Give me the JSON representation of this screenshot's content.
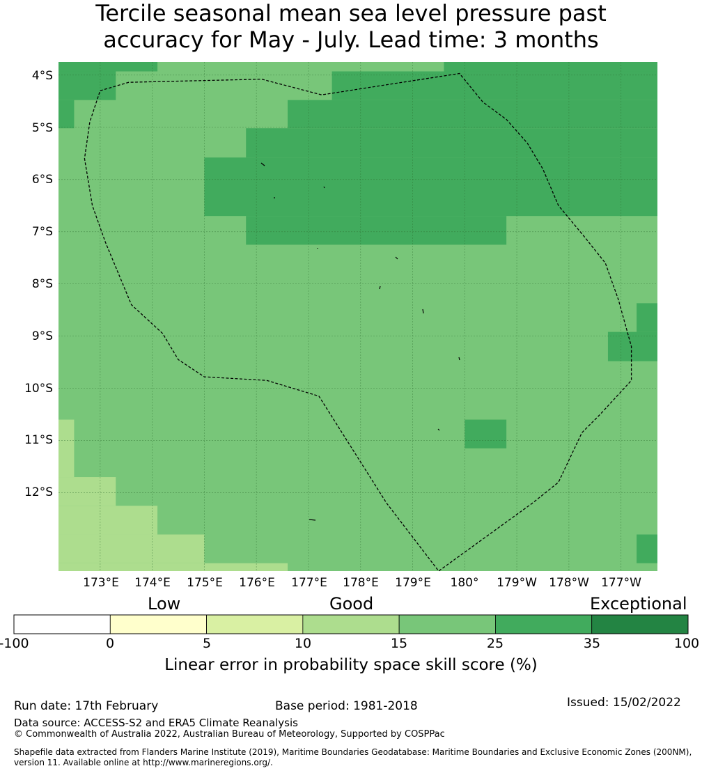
{
  "title": {
    "line1": "Tercile seasonal mean sea level pressure past",
    "line2": "accuracy for May - July. Lead time: 3 months"
  },
  "map": {
    "lat_labels": [
      "4°S",
      "5°S",
      "6°S",
      "7°S",
      "8°S",
      "9°S",
      "10°S",
      "11°S",
      "12°S"
    ],
    "lon_labels": [
      "173°E",
      "174°E",
      "175°E",
      "176°E",
      "177°E",
      "178°E",
      "179°E",
      "180°",
      "179°W",
      "178°W",
      "177°W"
    ],
    "lat_range": [
      -13.5,
      -3.75
    ],
    "lon_range": [
      172.2,
      183.7
    ],
    "gridlines": true,
    "eez_boundary": [
      [
        173.0,
        -4.3
      ],
      [
        173.55,
        -4.14
      ],
      [
        176.1,
        -4.08
      ],
      [
        177.25,
        -4.38
      ],
      [
        179.9,
        -3.97
      ],
      [
        180.35,
        -4.52
      ],
      [
        180.8,
        -4.85
      ],
      [
        181.2,
        -5.3
      ],
      [
        181.5,
        -5.8
      ],
      [
        181.8,
        -6.5
      ],
      [
        182.3,
        -7.1
      ],
      [
        182.7,
        -7.6
      ],
      [
        182.95,
        -8.3
      ],
      [
        183.2,
        -9.2
      ],
      [
        183.2,
        -9.85
      ],
      [
        182.6,
        -10.5
      ],
      [
        182.25,
        -10.85
      ],
      [
        181.8,
        -11.8
      ],
      [
        181.3,
        -12.2
      ],
      [
        179.5,
        -13.5
      ],
      [
        178.5,
        -12.2
      ],
      [
        177.2,
        -10.15
      ],
      [
        176.2,
        -9.85
      ],
      [
        175.0,
        -9.78
      ],
      [
        174.5,
        -9.45
      ],
      [
        174.2,
        -8.95
      ],
      [
        173.6,
        -8.4
      ],
      [
        173.1,
        -7.2
      ],
      [
        172.85,
        -6.5
      ],
      [
        172.7,
        -5.6
      ],
      [
        172.8,
        -4.9
      ],
      [
        173.0,
        -4.3
      ]
    ],
    "skill_cells": [
      {
        "lon": [
          172.2,
          174.1
        ],
        "lat": [
          -3.75,
          -3.93
        ],
        "category": 5
      },
      {
        "lon": [
          172.2,
          173.3
        ],
        "lat": [
          -3.93,
          -4.48
        ],
        "category": 5
      },
      {
        "lon": [
          172.2,
          172.5
        ],
        "lat": [
          -4.48,
          -5.02
        ],
        "category": 5
      },
      {
        "lon": [
          179.6,
          183.7
        ],
        "lat": [
          -3.75,
          -3.93
        ],
        "category": 5
      },
      {
        "lon": [
          177.45,
          183.7
        ],
        "lat": [
          -3.93,
          -4.48
        ],
        "category": 5
      },
      {
        "lon": [
          176.6,
          183.7
        ],
        "lat": [
          -4.48,
          -5.02
        ],
        "category": 5
      },
      {
        "lon": [
          175.8,
          183.7
        ],
        "lat": [
          -5.02,
          -5.58
        ],
        "category": 5
      },
      {
        "lon": [
          175.0,
          183.7
        ],
        "lat": [
          -5.58,
          -6.7
        ],
        "category": 5
      },
      {
        "lon": [
          175.8,
          180.8
        ],
        "lat": [
          -6.7,
          -7.25
        ],
        "category": 5
      },
      {
        "lon": [
          183.3,
          183.7
        ],
        "lat": [
          -8.37,
          -8.92
        ],
        "category": 5
      },
      {
        "lon": [
          182.75,
          183.7
        ],
        "lat": [
          -8.92,
          -9.48
        ],
        "category": 5
      },
      {
        "lon": [
          180.0,
          180.8
        ],
        "lat": [
          -10.6,
          -11.15
        ],
        "category": 5
      },
      {
        "lon": [
          183.3,
          183.7
        ],
        "lat": [
          -12.8,
          -13.35
        ],
        "category": 5
      },
      {
        "lon": [
          172.2,
          172.5
        ],
        "lat": [
          -10.6,
          -11.7
        ],
        "category": 3
      },
      {
        "lon": [
          172.2,
          173.3
        ],
        "lat": [
          -11.7,
          -12.25
        ],
        "category": 3
      },
      {
        "lon": [
          172.2,
          174.1
        ],
        "lat": [
          -12.25,
          -12.8
        ],
        "category": 3
      },
      {
        "lon": [
          172.2,
          175.0
        ],
        "lat": [
          -12.8,
          -13.35
        ],
        "category": 3
      },
      {
        "lon": [
          172.2,
          176.6
        ],
        "lat": [
          -13.35,
          -13.5
        ],
        "category": 3
      }
    ]
  },
  "colorbar": {
    "category_labels": [
      "Low",
      "Good",
      "Exceptional"
    ],
    "ticks": [
      "-100",
      "0",
      "5",
      "10",
      "15",
      "25",
      "35",
      "100"
    ],
    "colors": [
      "#ffffff",
      "#ffffcc",
      "#d9f0a3",
      "#addd8e",
      "#78c679",
      "#41ab5d",
      "#238443"
    ],
    "title": "Linear error in probability space skill score (%)"
  },
  "footer": {
    "run_date": "Run date: 17th February",
    "base_period": "Base period: 1981-2018",
    "issued": "Issued: 15/02/2022",
    "data_source": "Data source: ACCESS-S2 and ERA5 Climate Reanalysis",
    "copyright": "© Commonwealth of Australia 2022, Australian Bureau of Meteorology, Supported by COSPPac",
    "shapefile_line1": "Shapefile data extracted from Flanders Marine Institute (2019), Maritime Boundaries Geodatabase: Maritime Boundaries and Exclusive Economic Zones (200NM),",
    "shapefile_line2": "version 11. Available online at http://www.marineregions.org/."
  }
}
